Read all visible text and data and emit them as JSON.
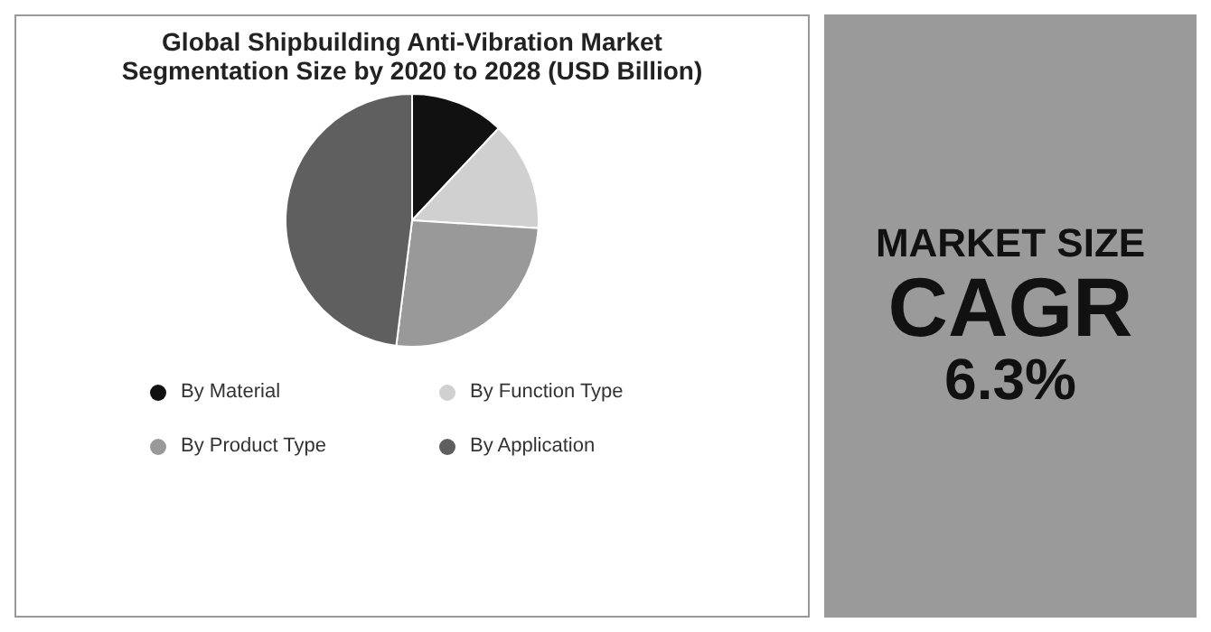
{
  "chart_data": {
    "type": "pie",
    "title": "Global Shipbuilding Anti-Vibration Market Segmentation Size by 2020 to 2028 (USD Billion)",
    "categories": [
      "By Material",
      "By Function Type",
      "By Product Type",
      "By Application"
    ],
    "values": [
      12,
      14,
      26,
      48
    ],
    "colors": [
      "#111111",
      "#d0d0d0",
      "#999999",
      "#5f5f5f"
    ],
    "legend": "bottom",
    "annotations": [
      "MARKET SIZE",
      "CAGR",
      "6.3%"
    ]
  }
}
